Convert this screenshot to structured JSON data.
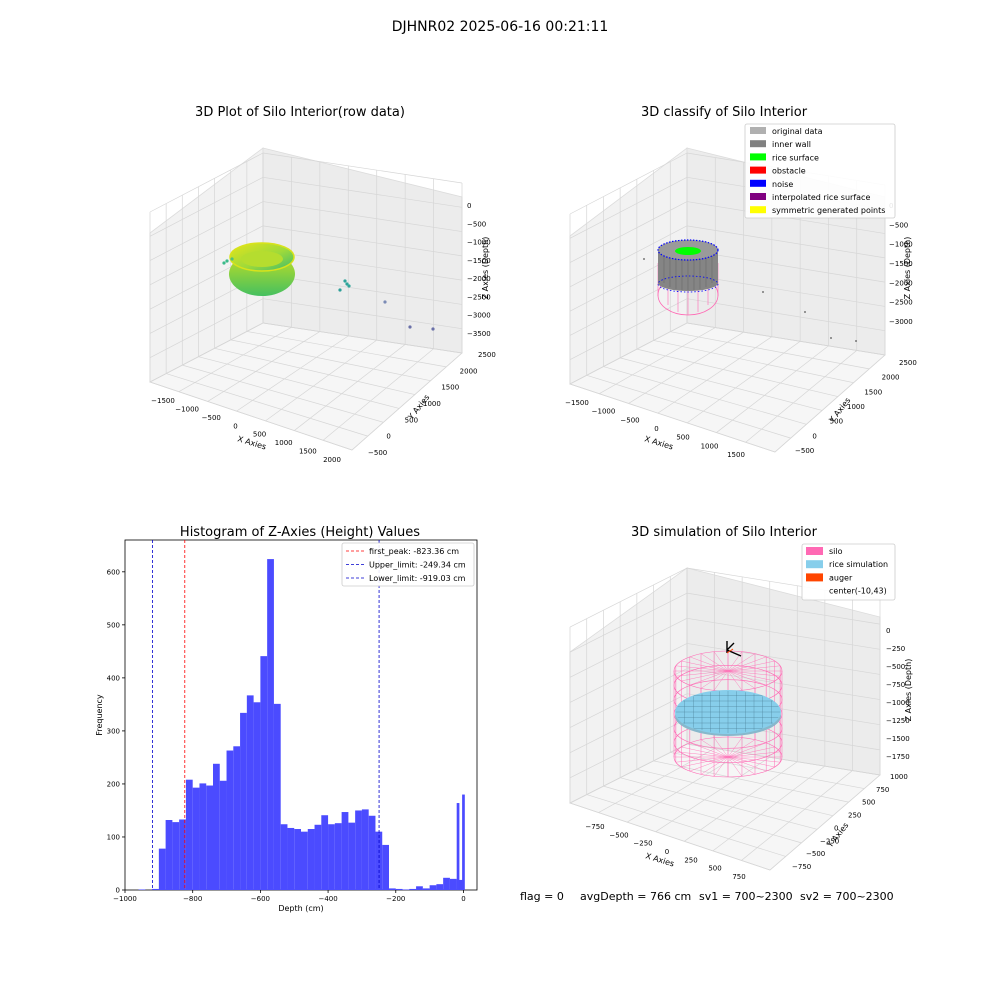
{
  "figure": {
    "suptitle": "DJHNR02 2025-06-16 00:21:11",
    "status_line": {
      "flag": "flag = 0",
      "avg_depth": "avgDepth = 766 cm",
      "sv1": "sv1 = 700~2300",
      "sv2": "sv2 = 700~2300"
    }
  },
  "colors": {
    "hist_bar": "#4b4bff",
    "first_peak_line": "#ff0000",
    "limit_line": "#0000cc",
    "silo_wire": "#ff69b4",
    "rice_sim": "#87ceeb",
    "auger": "#ff4500",
    "legend_original": "#b0b0b0",
    "legend_inner_wall": "#808080",
    "legend_rice_surface": "#00ff00",
    "legend_obstacle": "#ff0000",
    "legend_noise": "#0000ff",
    "legend_interp": "#800080",
    "legend_symmetric": "#ffff00"
  },
  "chart_data": [
    {
      "type": "scatter",
      "title": "3D Plot of Silo Interior(row data)",
      "xlabel": "X Axies",
      "ylabel": "Y Axies",
      "zlabel": "Z Axies (Depth)",
      "x_ticks": [
        "−1500",
        "−1000",
        "−500",
        "0",
        "500",
        "1000",
        "1500",
        "2000"
      ],
      "y_ticks": [
        "−500",
        "0",
        "500",
        "1000",
        "1500",
        "2000",
        "2500"
      ],
      "z_ticks": [
        "0",
        "−500",
        "−1000",
        "−1500",
        "−2000",
        "−2500",
        "−3000",
        "−3500"
      ],
      "xlim": [
        -1600,
        2100
      ],
      "ylim": [
        -600,
        2600
      ],
      "zlim": [
        -3700,
        200
      ],
      "colormap": "viridis (by depth)"
    },
    {
      "type": "scatter",
      "title": "3D classify of Silo Interior",
      "xlabel": "X Axies",
      "ylabel": "Y Axies",
      "zlabel": "Z Axies (Depth)",
      "x_ticks": [
        "−1500",
        "−1000",
        "−500",
        "0",
        "500",
        "1000",
        "1500"
      ],
      "y_ticks": [
        "−500",
        "0",
        "500",
        "1000",
        "1500",
        "2000",
        "2500"
      ],
      "z_ticks": [
        "0",
        "−500",
        "−1000",
        "−1500",
        "−2000",
        "−2500",
        "−3000"
      ],
      "legend": [
        {
          "label": "original data",
          "color": "#b0b0b0"
        },
        {
          "label": "inner wall",
          "color": "#808080"
        },
        {
          "label": "rice surface",
          "color": "#00ff00"
        },
        {
          "label": "obstacle",
          "color": "#ff0000"
        },
        {
          "label": "noise",
          "color": "#0000ff"
        },
        {
          "label": "interpolated rice surface",
          "color": "#800080"
        },
        {
          "label": "symmetric generated points",
          "color": "#ffff00"
        }
      ],
      "legend_placement": "upper-right"
    },
    {
      "type": "bar",
      "title": "Histogram of Z-Axies (Height) Values",
      "xlabel": "Depth (cm)",
      "ylabel": "Frequency",
      "xlim": [
        -1000,
        40
      ],
      "ylim": [
        0,
        660
      ],
      "x_ticks": [
        -1000,
        -800,
        -600,
        -400,
        -200,
        0
      ],
      "x_tick_labels": [
        "−1000",
        "−800",
        "−600",
        "−400",
        "−200",
        "0"
      ],
      "y_ticks": [
        0,
        100,
        200,
        300,
        400,
        500,
        600
      ],
      "bin_left_edges": [
        -960,
        -940,
        -920,
        -900,
        -880,
        -860,
        -840,
        -820,
        -800,
        -780,
        -760,
        -740,
        -720,
        -700,
        -680,
        -660,
        -640,
        -620,
        -600,
        -580,
        -560,
        -540,
        -520,
        -500,
        -480,
        -460,
        -440,
        -420,
        -400,
        -380,
        -360,
        -340,
        -320,
        -300,
        -280,
        -260,
        -240,
        -220,
        -200,
        -180,
        -160,
        -140,
        -120,
        -100,
        -80,
        -60,
        -40,
        -20
      ],
      "bin_width": 20,
      "values": [
        1,
        0,
        2,
        78,
        132,
        128,
        133,
        208,
        193,
        201,
        197,
        238,
        206,
        263,
        271,
        334,
        367,
        354,
        441,
        624,
        351,
        124,
        117,
        115,
        110,
        115,
        123,
        141,
        124,
        126,
        147,
        127,
        150,
        152,
        140,
        110,
        85,
        3,
        2,
        1,
        2,
        7,
        3,
        9,
        11,
        23,
        21,
        19
      ],
      "tail_bins": [
        {
          "left": -20,
          "value": 164
        },
        {
          "left": -4,
          "value": 180
        }
      ],
      "reference_lines": [
        {
          "label": "first_peak: -823.36 cm",
          "x": -823.36,
          "color": "#ff0000"
        },
        {
          "label": "Upper_limit: -249.34 cm",
          "x": -249.34,
          "color": "#0000cc"
        },
        {
          "label": "Lower_limit: -919.03 cm",
          "x": -919.03,
          "color": "#0000cc"
        }
      ],
      "legend_placement": "upper-right"
    },
    {
      "type": "scatter",
      "title": "3D simulation of Silo Interior",
      "xlabel": "X Axies",
      "ylabel": "Y Axies",
      "zlabel": "Z Axies (Depth)",
      "x_ticks": [
        "−750",
        "−500",
        "−250",
        "0",
        "250",
        "500",
        "750"
      ],
      "y_ticks": [
        "−750",
        "−500",
        "−250",
        "0",
        "250",
        "500",
        "750",
        "1000"
      ],
      "z_ticks": [
        "0",
        "−250",
        "−500",
        "−750",
        "−1000",
        "−1250",
        "−1500",
        "−1750"
      ],
      "legend": [
        {
          "label": "silo",
          "color": "#ff69b4"
        },
        {
          "label": "rice simulation",
          "color": "#87ceeb"
        },
        {
          "label": "auger",
          "color": "#ff4500"
        },
        {
          "label": "center(-10,43)",
          "color": ""
        }
      ],
      "legend_placement": "upper-right"
    }
  ]
}
